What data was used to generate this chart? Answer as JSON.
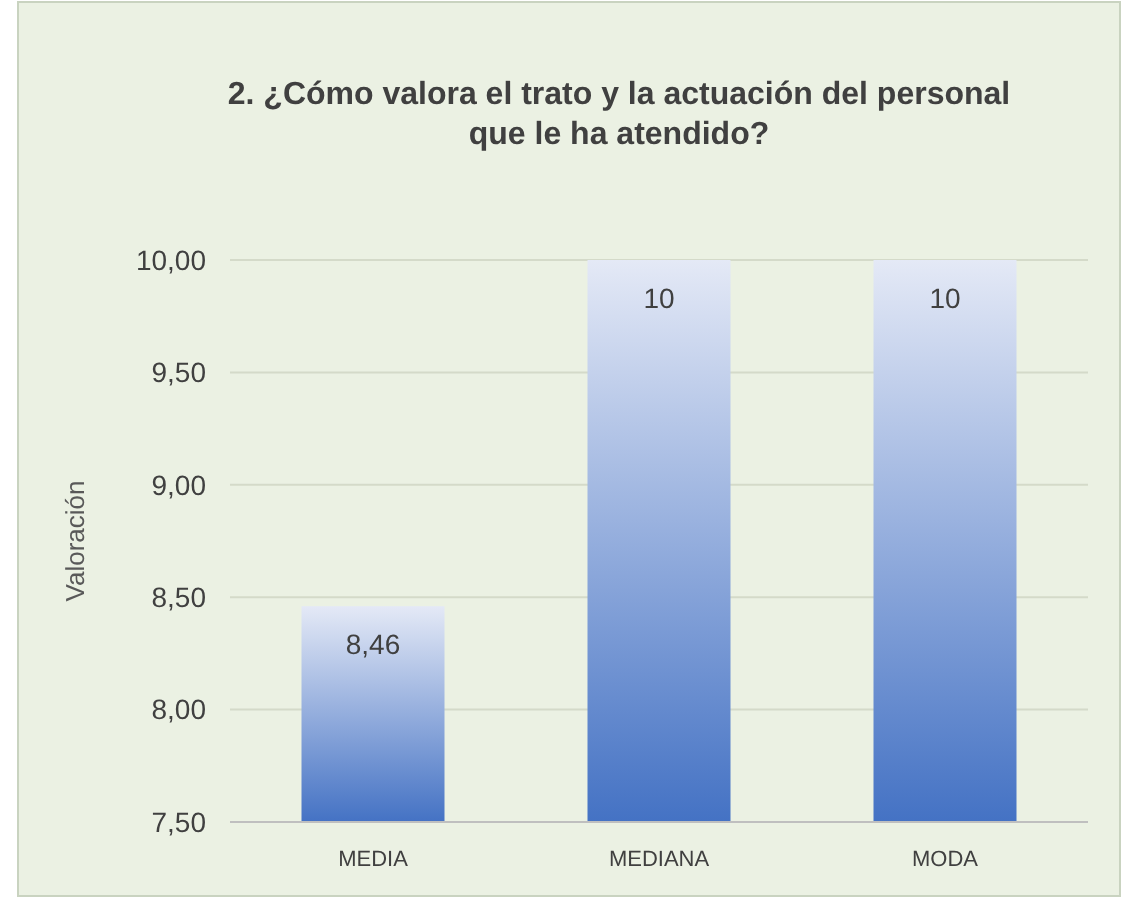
{
  "chart_data": {
    "type": "bar",
    "title": "2. ¿Cómo valora el trato y la actuación del personal que le ha atendido?",
    "ylabel": "Valoración",
    "categories": [
      "MEDIA",
      "MEDIANA",
      "MODA"
    ],
    "values": [
      8.46,
      10,
      10
    ],
    "color": "#4472c4",
    "value_labels": [
      "8,46",
      "10",
      "10"
    ],
    "ylim": [
      7.5,
      10
    ],
    "yticks": [
      {
        "value": 7.5,
        "label": "7,50"
      },
      {
        "value": 8,
        "label": "8,00"
      },
      {
        "value": 8.5,
        "label": "8,50"
      },
      {
        "value": 9,
        "label": "9,00"
      },
      {
        "value": 9.5,
        "label": "9,50"
      },
      {
        "value": 10,
        "label": "10,00"
      }
    ],
    "grid": "y"
  }
}
